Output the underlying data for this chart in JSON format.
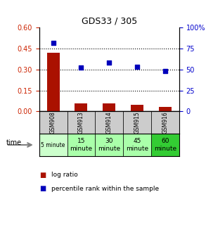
{
  "title": "GDS33 / 305",
  "samples": [
    "GSM908",
    "GSM913",
    "GSM914",
    "GSM915",
    "GSM916"
  ],
  "log_ratio": [
    0.42,
    0.055,
    0.055,
    0.045,
    0.03
  ],
  "percentile_rank": [
    82,
    52,
    58,
    53,
    48
  ],
  "left_ylim": [
    0,
    0.6
  ],
  "left_yticks": [
    0,
    0.15,
    0.3,
    0.45,
    0.6
  ],
  "right_ylim": [
    0,
    100
  ],
  "right_yticks": [
    0,
    25,
    50,
    75,
    100
  ],
  "right_yticklabels": [
    "0",
    "25",
    "50",
    "75",
    "100%"
  ],
  "left_tick_color": "#cc2200",
  "right_tick_color": "#0000cc",
  "bar_color": "#aa1100",
  "dot_color": "#0000bb",
  "time_labels": [
    "5 minute",
    "15\nminute",
    "30\nminute",
    "45\nminute",
    "60\nminute"
  ],
  "time_bg_colors": [
    "#ccffcc",
    "#aaffaa",
    "#aaffaa",
    "#aaffaa",
    "#33cc33"
  ],
  "gsm_bg_color": "#cccccc",
  "legend_bar_label": "log ratio",
  "legend_dot_label": "percentile rank within the sample",
  "figsize": [
    2.93,
    3.27
  ],
  "dpi": 100
}
